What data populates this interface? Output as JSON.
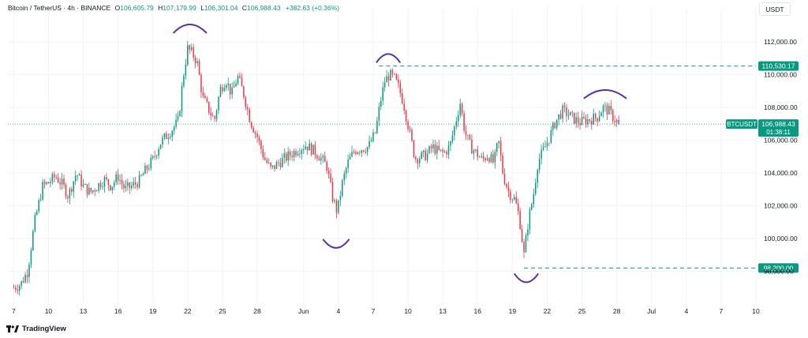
{
  "header": {
    "symbol": "Bitcoin / TetherUS · 4h · BINANCE",
    "o_label": "O",
    "o_value": "106,605.79",
    "h_label": "H",
    "h_value": "107,179.99",
    "l_label": "L",
    "l_value": "106,301.04",
    "c_label": "C",
    "c_value": "106,988.43",
    "change": "+382.63 (+0.36%)"
  },
  "currency": "USDT",
  "brand": "TradingView",
  "colors": {
    "up": "#089981",
    "down": "#f23645",
    "level_line": "#089981",
    "annotation": "#5b2fa8",
    "last_price_line": "#089981"
  },
  "chart_data": {
    "type": "candlestick",
    "timeframe": "4h",
    "y_ticks": [
      "98,000.00",
      "100,000.00",
      "102,000.00",
      "104,000.00",
      "106,000.00",
      "108,000.00",
      "110,000.00",
      "112,000.00"
    ],
    "y_tick_values": [
      98000,
      100000,
      102000,
      104000,
      106000,
      108000,
      110000,
      112000
    ],
    "ylim": [
      96000,
      113600
    ],
    "x_ticks": [
      {
        "label": "7",
        "day": 0
      },
      {
        "label": "10",
        "day": 3
      },
      {
        "label": "13",
        "day": 6
      },
      {
        "label": "16",
        "day": 9
      },
      {
        "label": "19",
        "day": 12
      },
      {
        "label": "22",
        "day": 15
      },
      {
        "label": "25",
        "day": 18
      },
      {
        "label": "28",
        "day": 21
      },
      {
        "label": "Jun",
        "day": 25
      },
      {
        "label": "4",
        "day": 28
      },
      {
        "label": "7",
        "day": 31
      },
      {
        "label": "10",
        "day": 34
      },
      {
        "label": "13",
        "day": 37
      },
      {
        "label": "16",
        "day": 40
      },
      {
        "label": "19",
        "day": 43
      },
      {
        "label": "22",
        "day": 46
      },
      {
        "label": "25",
        "day": 49
      },
      {
        "label": "28",
        "day": 52
      },
      {
        "label": "Jul",
        "day": 55
      },
      {
        "label": "4",
        "day": 58
      },
      {
        "label": "7",
        "day": 61
      },
      {
        "label": "10",
        "day": 64
      }
    ],
    "x_range_days": [
      -0.5,
      64
    ],
    "price_series": [
      [
        0,
        97000
      ],
      [
        0.6,
        97200
      ],
      [
        1.2,
        98000
      ],
      [
        1.8,
        101000
      ],
      [
        2.5,
        103200
      ],
      [
        3.0,
        103400
      ],
      [
        3.6,
        103800
      ],
      [
        4.2,
        103300
      ],
      [
        4.7,
        102600
      ],
      [
        5.4,
        104000
      ],
      [
        6.0,
        103200
      ],
      [
        6.6,
        102800
      ],
      [
        7.2,
        103200
      ],
      [
        7.8,
        103600
      ],
      [
        8.4,
        103200
      ],
      [
        9.0,
        103800
      ],
      [
        9.6,
        103000
      ],
      [
        10.2,
        103200
      ],
      [
        10.8,
        103500
      ],
      [
        11.4,
        104200
      ],
      [
        12.0,
        104800
      ],
      [
        12.6,
        105800
      ],
      [
        13.2,
        106300
      ],
      [
        13.7,
        106700
      ],
      [
        14.2,
        107200
      ],
      [
        14.6,
        109800
      ],
      [
        15.0,
        111600
      ],
      [
        15.4,
        111300
      ],
      [
        15.8,
        110800
      ],
      [
        16.3,
        108600
      ],
      [
        16.8,
        107900
      ],
      [
        17.3,
        107200
      ],
      [
        17.8,
        109100
      ],
      [
        18.3,
        109700
      ],
      [
        18.8,
        108800
      ],
      [
        19.3,
        109900
      ],
      [
        19.8,
        108900
      ],
      [
        20.4,
        107200
      ],
      [
        21.0,
        106200
      ],
      [
        21.6,
        104900
      ],
      [
        22.2,
        104200
      ],
      [
        22.8,
        104600
      ],
      [
        23.4,
        104900
      ],
      [
        24.0,
        105200
      ],
      [
        24.6,
        105500
      ],
      [
        25.2,
        105700
      ],
      [
        25.8,
        105400
      ],
      [
        26.4,
        105000
      ],
      [
        27.0,
        104400
      ],
      [
        27.5,
        102500
      ],
      [
        27.9,
        101600
      ],
      [
        28.3,
        103300
      ],
      [
        28.8,
        104600
      ],
      [
        29.4,
        105400
      ],
      [
        30.0,
        105500
      ],
      [
        30.6,
        105600
      ],
      [
        31.2,
        106500
      ],
      [
        31.6,
        108300
      ],
      [
        32.0,
        109600
      ],
      [
        32.4,
        110000
      ],
      [
        32.8,
        109800
      ],
      [
        33.2,
        109200
      ],
      [
        33.6,
        108300
      ],
      [
        34.1,
        106600
      ],
      [
        34.6,
        104900
      ],
      [
        35.1,
        105000
      ],
      [
        35.6,
        105100
      ],
      [
        36.1,
        105600
      ],
      [
        36.6,
        105300
      ],
      [
        37.1,
        105200
      ],
      [
        37.6,
        105600
      ],
      [
        38.1,
        107100
      ],
      [
        38.5,
        108300
      ],
      [
        38.9,
        106500
      ],
      [
        39.4,
        105600
      ],
      [
        39.9,
        105200
      ],
      [
        40.4,
        104800
      ],
      [
        40.9,
        105100
      ],
      [
        41.4,
        104600
      ],
      [
        41.8,
        106000
      ],
      [
        42.2,
        103900
      ],
      [
        42.7,
        102800
      ],
      [
        43.2,
        102400
      ],
      [
        43.6,
        101300
      ],
      [
        44.0,
        99000
      ],
      [
        44.4,
        101200
      ],
      [
        44.8,
        102600
      ],
      [
        45.2,
        104700
      ],
      [
        45.7,
        105400
      ],
      [
        46.2,
        106200
      ],
      [
        46.7,
        107100
      ],
      [
        47.3,
        107800
      ],
      [
        47.8,
        107600
      ],
      [
        48.3,
        107300
      ],
      [
        48.8,
        107100
      ],
      [
        49.3,
        107200
      ],
      [
        49.8,
        107300
      ],
      [
        50.3,
        107400
      ],
      [
        50.8,
        108000
      ],
      [
        51.3,
        107800
      ],
      [
        51.8,
        107300
      ],
      [
        52.2,
        107000
      ]
    ],
    "last_price": 106988.43,
    "last_price_tag": "BTCUSDT",
    "last_price_value": "106,988.43",
    "countdown": "01:38:11",
    "levels": [
      {
        "label": "110,530.17",
        "price": 110530.17,
        "from_day": 31.5
      },
      {
        "label": "98,200.00",
        "price": 98200.0,
        "from_day": 44.0
      }
    ],
    "annotations": [
      {
        "type": "arc_top",
        "day": 15.2,
        "price": 112700,
        "width_days": 2.8
      },
      {
        "type": "arc_bottom",
        "day": 27.8,
        "price": 99800,
        "width_days": 2.2
      },
      {
        "type": "arc_top",
        "day": 32.3,
        "price": 110900,
        "width_days": 2.0
      },
      {
        "type": "arc_bottom",
        "day": 44.2,
        "price": 97700,
        "width_days": 2.0
      },
      {
        "type": "arc_top",
        "day": 51.0,
        "price": 108700,
        "width_days": 3.6
      }
    ]
  }
}
